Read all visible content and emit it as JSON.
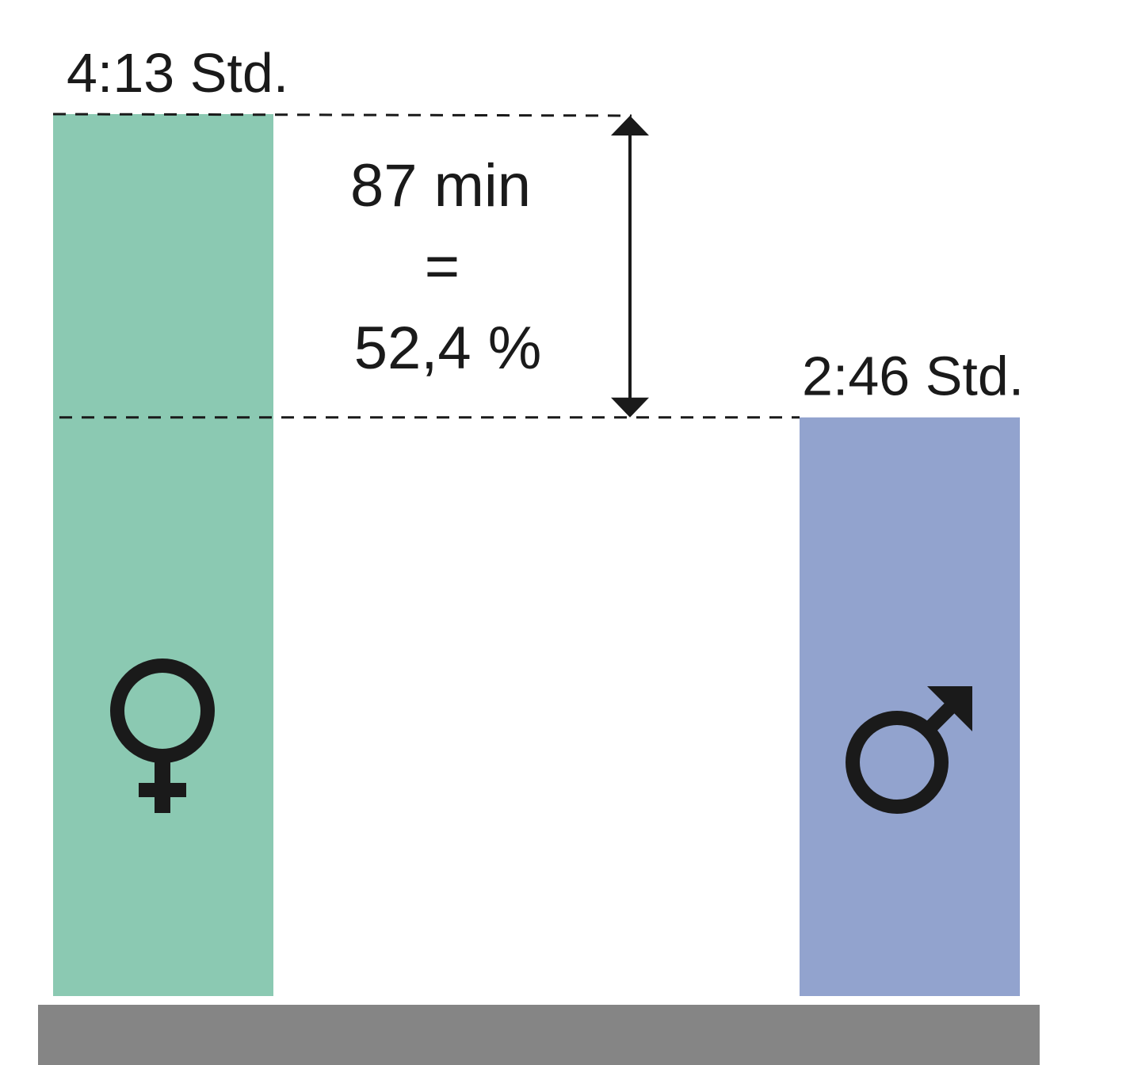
{
  "chart_data": {
    "type": "bar",
    "categories": [
      "♀",
      "♂"
    ],
    "values": [
      253,
      166
    ],
    "units": "min",
    "value_labels": [
      "4:13 Std.",
      "2:46 Std."
    ],
    "ylim": [
      0,
      253
    ],
    "grid": false,
    "legend": "none",
    "colors": [
      "#8bc9b2",
      "#92a3ce"
    ],
    "baseline_color": "#858585",
    "icons": [
      "female-symbol-icon",
      "male-symbol-icon"
    ],
    "difference": {
      "line1": "87 min",
      "line2": "=",
      "line3": "52,4 %"
    }
  }
}
